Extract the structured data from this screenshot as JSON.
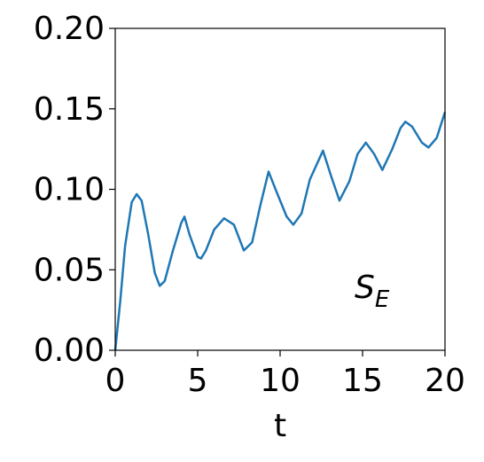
{
  "chart_data": {
    "type": "line",
    "xlabel": "t",
    "annotation": {
      "text": "S",
      "subscript": "E"
    },
    "series": [
      {
        "color": "#1f77b4",
        "x": [
          0,
          0.3,
          0.6,
          1.0,
          1.3,
          1.6,
          2.0,
          2.4,
          2.7,
          3.0,
          3.5,
          4.0,
          4.2,
          4.5,
          5.0,
          5.2,
          5.5,
          6.0,
          6.6,
          7.2,
          7.8,
          8.3,
          8.8,
          9.3,
          9.8,
          10.4,
          10.8,
          11.3,
          11.8,
          12.6,
          13.1,
          13.6,
          14.2,
          14.7,
          15.2,
          15.7,
          16.2,
          16.8,
          17.3,
          17.6,
          18.0,
          18.6,
          19.0,
          19.5,
          20
        ],
        "values": [
          0,
          0.03,
          0.065,
          0.092,
          0.097,
          0.093,
          0.072,
          0.048,
          0.04,
          0.043,
          0.062,
          0.079,
          0.083,
          0.072,
          0.058,
          0.057,
          0.062,
          0.075,
          0.082,
          0.078,
          0.062,
          0.067,
          0.09,
          0.111,
          0.098,
          0.083,
          0.078,
          0.085,
          0.106,
          0.124,
          0.108,
          0.093,
          0.105,
          0.122,
          0.129,
          0.122,
          0.112,
          0.125,
          0.138,
          0.142,
          0.139,
          0.129,
          0.126,
          0.132,
          0.148
        ]
      }
    ],
    "xlim": [
      0,
      20
    ],
    "xticks": [
      0,
      5,
      10,
      15,
      20
    ],
    "ylim": [
      0,
      0.2
    ],
    "yticks": [
      {
        "value": 0,
        "label": "0.00"
      },
      {
        "value": 0.05,
        "label": "0.05"
      },
      {
        "value": 0.1,
        "label": "0.10"
      },
      {
        "value": 0.15,
        "label": "0.15"
      },
      {
        "value": 0.2,
        "label": "0.20"
      }
    ],
    "grid": false
  }
}
